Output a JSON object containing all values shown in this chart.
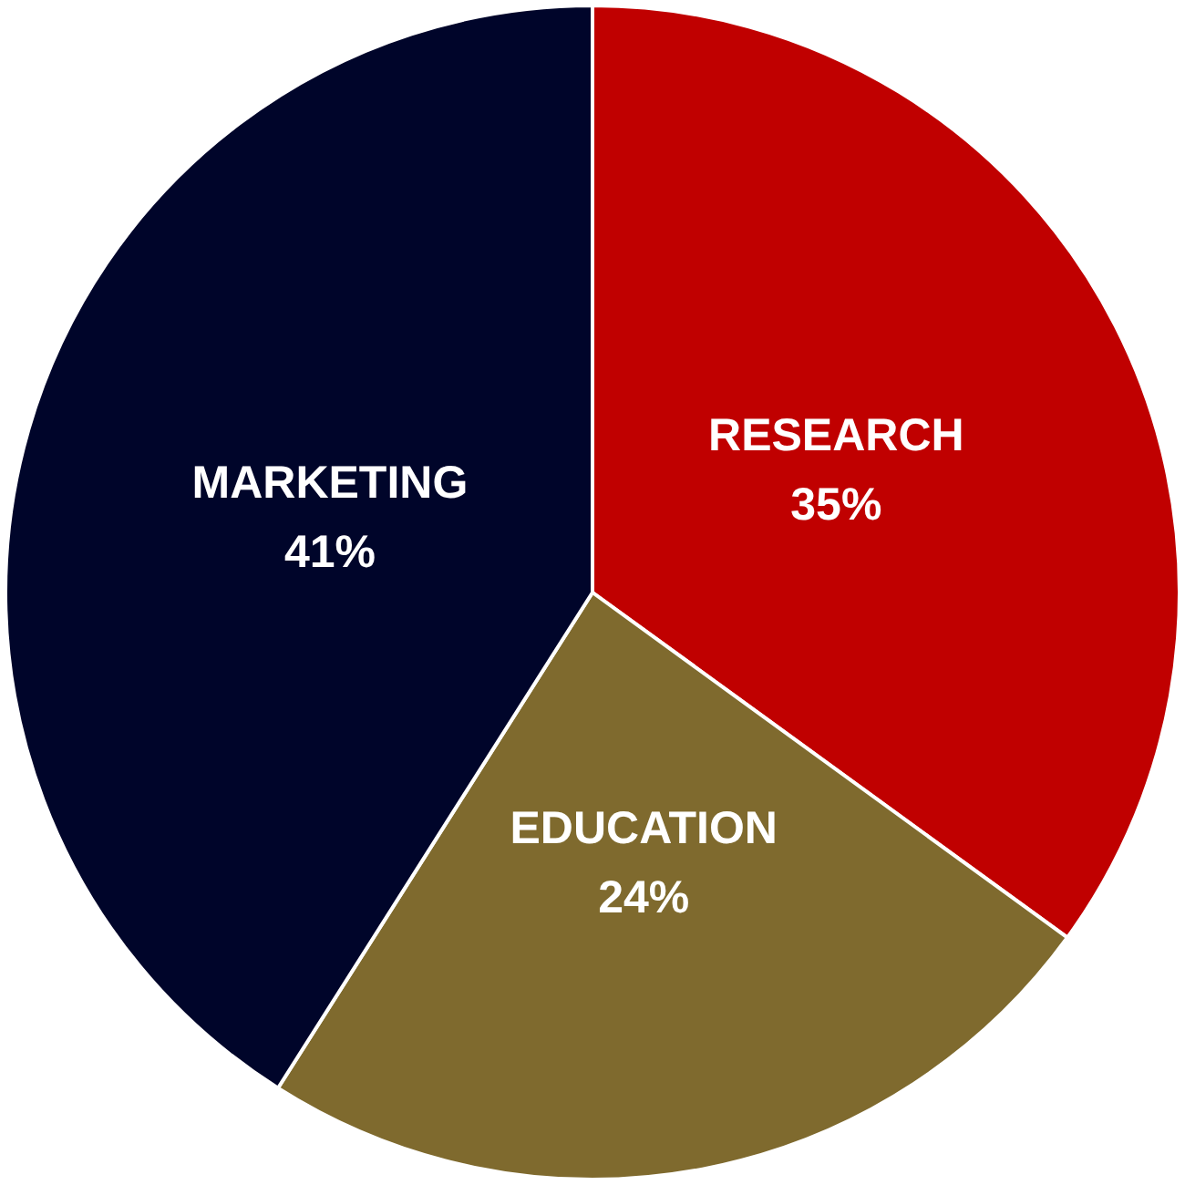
{
  "chart_data": {
    "type": "pie",
    "categories": [
      "RESEARCH",
      "EDUCATION",
      "MARKETING"
    ],
    "values": [
      35,
      24,
      41
    ],
    "value_labels": [
      "35%",
      "24%",
      "41%"
    ],
    "colors": [
      "#c00000",
      "#7f6a2e",
      "#00052a"
    ],
    "legend": false
  }
}
